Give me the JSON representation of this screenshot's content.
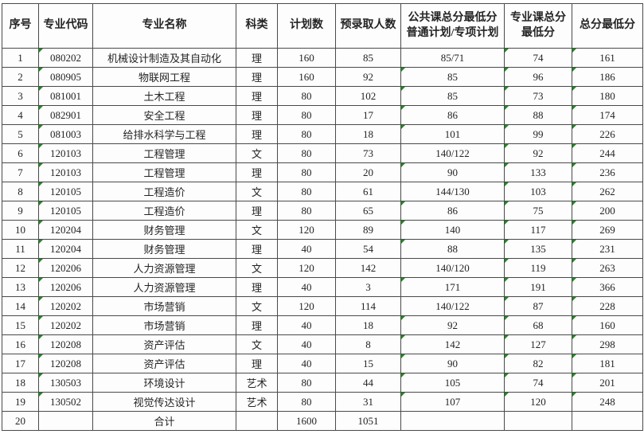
{
  "table": {
    "marker_color": "#1f8a1f",
    "marker_meaning": "excel-green-corner-flag",
    "headers": [
      {
        "name": "index",
        "lines": [
          "序号"
        ]
      },
      {
        "name": "major-code",
        "lines": [
          "专业代码"
        ]
      },
      {
        "name": "major-name",
        "lines": [
          "专业名称"
        ]
      },
      {
        "name": "subject-category",
        "lines": [
          "科类"
        ]
      },
      {
        "name": "plan-count",
        "lines": [
          "计划数"
        ]
      },
      {
        "name": "pre-admit-count",
        "lines": [
          "预录取人数"
        ]
      },
      {
        "name": "public-course-min",
        "lines": [
          "公共课总分最低分",
          "普通计划/专项计划"
        ]
      },
      {
        "name": "major-course-min",
        "lines": [
          "专业课总分",
          "最低分"
        ]
      },
      {
        "name": "total-min",
        "lines": [
          "总分最低分"
        ]
      }
    ],
    "rows": [
      {
        "cells": [
          "1",
          "080202",
          "机械设计制造及其自动化",
          "理",
          "160",
          "85",
          "85/71",
          "74",
          "161"
        ],
        "markers": [
          1,
          7,
          8
        ]
      },
      {
        "cells": [
          "2",
          "080905",
          "物联网工程",
          "理",
          "160",
          "92",
          "85",
          "96",
          "186"
        ],
        "markers": [
          1,
          6,
          7,
          8
        ]
      },
      {
        "cells": [
          "3",
          "081001",
          "土木工程",
          "理",
          "80",
          "102",
          "85",
          "73",
          "180"
        ],
        "markers": [
          1,
          6,
          7,
          8
        ]
      },
      {
        "cells": [
          "4",
          "082901",
          "安全工程",
          "理",
          "80",
          "17",
          "86",
          "88",
          "174"
        ],
        "markers": [
          1,
          6,
          7,
          8
        ]
      },
      {
        "cells": [
          "5",
          "081003",
          "给排水科学与工程",
          "理",
          "80",
          "18",
          "101",
          "99",
          "226"
        ],
        "markers": [
          1,
          6,
          7,
          8
        ]
      },
      {
        "cells": [
          "6",
          "120103",
          "工程管理",
          "文",
          "80",
          "73",
          "140/122",
          "92",
          "244"
        ],
        "markers": [
          1,
          7,
          8
        ]
      },
      {
        "cells": [
          "7",
          "120103",
          "工程管理",
          "理",
          "80",
          "20",
          "90",
          "133",
          "236"
        ],
        "markers": [
          1,
          6,
          7,
          8
        ]
      },
      {
        "cells": [
          "8",
          "120105",
          "工程造价",
          "文",
          "80",
          "61",
          "144/130",
          "103",
          "262"
        ],
        "markers": [
          1,
          7,
          8
        ]
      },
      {
        "cells": [
          "9",
          "120105",
          "工程造价",
          "理",
          "80",
          "65",
          "86",
          "75",
          "200"
        ],
        "markers": [
          1,
          6,
          7,
          8
        ]
      },
      {
        "cells": [
          "10",
          "120204",
          "财务管理",
          "文",
          "120",
          "89",
          "140",
          "117",
          "269"
        ],
        "markers": [
          1,
          6,
          7,
          8
        ]
      },
      {
        "cells": [
          "11",
          "120204",
          "财务管理",
          "理",
          "40",
          "54",
          "88",
          "135",
          "231"
        ],
        "markers": [
          1,
          6,
          7,
          8
        ]
      },
      {
        "cells": [
          "12",
          "120206",
          "人力资源管理",
          "文",
          "120",
          "142",
          "140/120",
          "119",
          "263"
        ],
        "markers": [
          1,
          7,
          8
        ]
      },
      {
        "cells": [
          "13",
          "120206",
          "人力资源管理",
          "理",
          "40",
          "3",
          "171",
          "191",
          "366"
        ],
        "markers": [
          1,
          6,
          7,
          8
        ]
      },
      {
        "cells": [
          "14",
          "120202",
          "市场营销",
          "文",
          "120",
          "114",
          "140/122",
          "87",
          "228"
        ],
        "markers": [
          1,
          7,
          8
        ]
      },
      {
        "cells": [
          "15",
          "120202",
          "市场营销",
          "理",
          "40",
          "18",
          "92",
          "68",
          "160"
        ],
        "markers": [
          1,
          6,
          7,
          8
        ]
      },
      {
        "cells": [
          "16",
          "120208",
          "资产评估",
          "文",
          "40",
          "8",
          "142",
          "127",
          "298"
        ],
        "markers": [
          1,
          6,
          7,
          8
        ]
      },
      {
        "cells": [
          "17",
          "120208",
          "资产评估",
          "理",
          "40",
          "15",
          "90",
          "82",
          "181"
        ],
        "markers": [
          1,
          6,
          7,
          8
        ]
      },
      {
        "cells": [
          "18",
          "130503",
          "环境设计",
          "艺术",
          "80",
          "44",
          "105",
          "74",
          "201"
        ],
        "markers": [
          1,
          6,
          7,
          8
        ]
      },
      {
        "cells": [
          "19",
          "130502",
          "视觉传达设计",
          "艺术",
          "80",
          "31",
          "107",
          "120",
          "248"
        ],
        "markers": [
          1,
          6,
          7,
          8
        ]
      },
      {
        "cells": [
          "20",
          "",
          "合计",
          "",
          "1600",
          "1051",
          "",
          "",
          ""
        ],
        "markers": []
      }
    ]
  }
}
